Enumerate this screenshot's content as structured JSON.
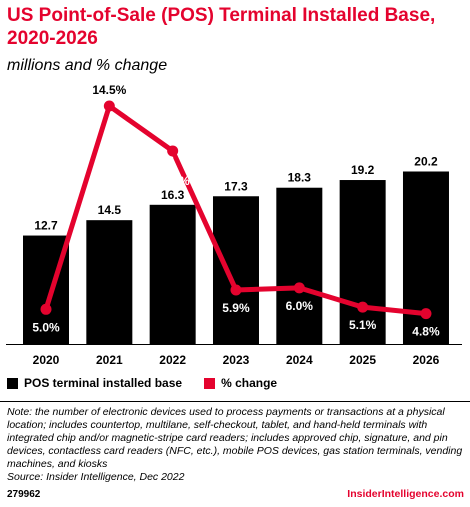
{
  "header": {
    "title": "US Point-of-Sale (POS) Terminal Installed Base, 2020-2026",
    "subtitle": "millions and % change"
  },
  "chart_data": {
    "type": "bar",
    "categories": [
      "2020",
      "2021",
      "2022",
      "2023",
      "2024",
      "2025",
      "2026"
    ],
    "series": [
      {
        "name": "POS terminal installed base",
        "type": "bar",
        "color": "#000000",
        "values": [
          12.7,
          14.5,
          16.3,
          17.3,
          18.3,
          19.2,
          20.2
        ],
        "labels": [
          "12.7",
          "14.5",
          "16.3",
          "17.3",
          "18.3",
          "19.2",
          "20.2"
        ]
      },
      {
        "name": "% change",
        "type": "line",
        "color": "#e4032e",
        "values": [
          5.0,
          14.5,
          12.4,
          5.9,
          6.0,
          5.1,
          4.8
        ],
        "labels": [
          "5.0%",
          "14.5%",
          "12.4%",
          "5.9%",
          "6.0%",
          "5.1%",
          "4.8%"
        ]
      }
    ],
    "grid": false,
    "legend_position": "bottom"
  },
  "legend": {
    "bar_label": "POS terminal installed base",
    "line_label": "% change"
  },
  "note": "Note: the number of electronic devices used to process payments or transactions at a physical location; includes countertop, multilane, self-checkout, tablet, and hand-held terminals with integrated chip and/or magnetic-stripe card readers; includes approved chip, signature, and pin devices, contactless card readers (NFC, etc.), mobile POS devices, gas station terminals, vending machines, and kiosks",
  "source": "Source: Insider Intelligence, Dec 2022",
  "footer": {
    "chart_id": "279962",
    "brand": "InsiderIntelligence.com"
  }
}
